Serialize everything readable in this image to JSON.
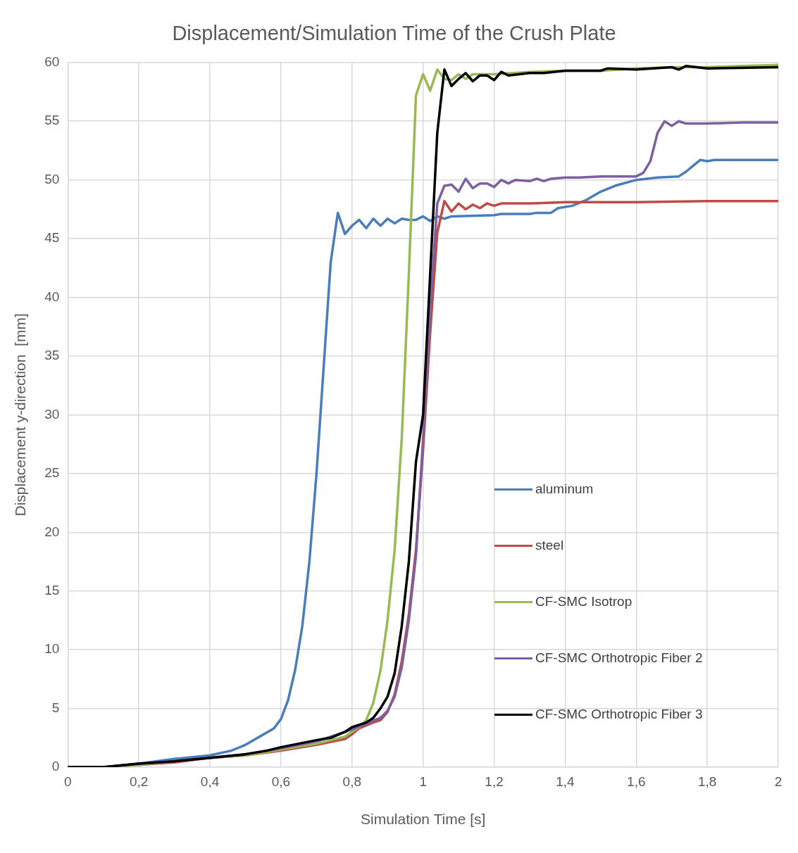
{
  "chart_data": {
    "type": "line",
    "title": "Displacement/Simulation Time of the Crush Plate",
    "xlabel": "Simulation Time [s]",
    "ylabel": "Displacement y-direction  [mm]",
    "xlim": [
      0,
      2
    ],
    "xticks": [
      0,
      {
        "value": 0.2,
        "label": "0,2"
      },
      {
        "value": 0.4,
        "label": "0,4"
      },
      {
        "value": 0.6,
        "label": "0,6"
      },
      {
        "value": 0.8,
        "label": "0,8"
      },
      1,
      {
        "value": 1.2,
        "label": "1,2"
      },
      {
        "value": 1.4,
        "label": "1,4"
      },
      {
        "value": 1.6,
        "label": "1,6"
      },
      {
        "value": 1.8,
        "label": "1,8"
      },
      2
    ],
    "ylim": [
      0,
      60
    ],
    "yticks": [
      0,
      5,
      10,
      15,
      20,
      25,
      30,
      35,
      40,
      45,
      50,
      55,
      60
    ],
    "grid": true,
    "legend": "right",
    "marker": "none",
    "line_style": "solid",
    "series": [
      {
        "name": "aluminum",
        "color": "#4a7ebb",
        "x": [
          0,
          0.1,
          0.2,
          0.3,
          0.4,
          0.46,
          0.5,
          0.54,
          0.58,
          0.6,
          0.62,
          0.64,
          0.66,
          0.68,
          0.7,
          0.72,
          0.74,
          0.76,
          0.78,
          0.8,
          0.82,
          0.84,
          0.86,
          0.88,
          0.9,
          0.92,
          0.94,
          0.96,
          0.98,
          1.0,
          1.02,
          1.04,
          1.06,
          1.08,
          1.2,
          1.22,
          1.3,
          1.32,
          1.36,
          1.38,
          1.42,
          1.46,
          1.5,
          1.54,
          1.6,
          1.66,
          1.72,
          1.74,
          1.76,
          1.78,
          1.8,
          1.82,
          1.88,
          2.0
        ],
        "values": [
          0,
          0,
          0.3,
          0.7,
          1.0,
          1.4,
          1.9,
          2.6,
          3.3,
          4.1,
          5.7,
          8.3,
          12,
          17.5,
          25,
          34,
          43,
          47.2,
          45.4,
          46.1,
          46.6,
          45.9,
          46.7,
          46.1,
          46.7,
          46.3,
          46.7,
          46.6,
          46.6,
          46.9,
          46.5,
          46.9,
          46.7,
          46.9,
          47.0,
          47.1,
          47.1,
          47.2,
          47.2,
          47.6,
          47.8,
          48.3,
          49.0,
          49.5,
          50.0,
          50.2,
          50.3,
          50.7,
          51.2,
          51.7,
          51.6,
          51.7,
          51.7,
          51.7
        ]
      },
      {
        "name": "steel",
        "color": "#be4b48",
        "x": [
          0,
          0.1,
          0.2,
          0.3,
          0.4,
          0.5,
          0.6,
          0.7,
          0.78,
          0.8,
          0.82,
          0.86,
          0.88,
          0.9,
          0.92,
          0.94,
          0.96,
          0.98,
          1.0,
          1.02,
          1.04,
          1.06,
          1.08,
          1.1,
          1.12,
          1.14,
          1.16,
          1.18,
          1.2,
          1.22,
          1.3,
          1.4,
          1.6,
          1.8,
          2.0
        ],
        "values": [
          0,
          0,
          0.2,
          0.4,
          0.8,
          1.0,
          1.4,
          1.9,
          2.4,
          2.8,
          3.3,
          3.8,
          4.0,
          4.7,
          6.2,
          9,
          13,
          18.5,
          27,
          37,
          45.5,
          48.2,
          47.3,
          48.0,
          47.5,
          47.9,
          47.6,
          48.0,
          47.8,
          48.0,
          48.0,
          48.1,
          48.1,
          48.2,
          48.2
        ]
      },
      {
        "name": "CF-SMC Isotrop",
        "color": "#98b954",
        "x": [
          0,
          0.1,
          0.2,
          0.3,
          0.4,
          0.5,
          0.6,
          0.7,
          0.78,
          0.82,
          0.84,
          0.86,
          0.88,
          0.9,
          0.92,
          0.94,
          0.96,
          0.98,
          1.0,
          1.02,
          1.04,
          1.06,
          1.08,
          1.1,
          1.12,
          1.14,
          1.2,
          1.3,
          1.4,
          1.5,
          1.6,
          1.7,
          1.8,
          1.9,
          2.0
        ],
        "values": [
          0,
          0,
          0.2,
          0.5,
          0.8,
          1.0,
          1.5,
          2.0,
          2.6,
          3.4,
          4.0,
          5.5,
          8.2,
          12.5,
          18.5,
          28,
          42,
          57.2,
          59.0,
          57.6,
          59.4,
          58.6,
          58.5,
          59.0,
          58.6,
          59.0,
          59.0,
          59.2,
          59.3,
          59.3,
          59.5,
          59.6,
          59.6,
          59.7,
          59.8
        ]
      },
      {
        "name": "CF-SMC Orthotropic Fiber 2",
        "color": "#7d60a0",
        "x": [
          0,
          0.1,
          0.2,
          0.3,
          0.4,
          0.5,
          0.6,
          0.7,
          0.8,
          0.84,
          0.88,
          0.9,
          0.92,
          0.94,
          0.96,
          0.98,
          1.0,
          1.02,
          1.04,
          1.06,
          1.08,
          1.1,
          1.12,
          1.14,
          1.16,
          1.18,
          1.2,
          1.22,
          1.24,
          1.26,
          1.3,
          1.32,
          1.34,
          1.36,
          1.4,
          1.44,
          1.5,
          1.54,
          1.6,
          1.62,
          1.64,
          1.66,
          1.68,
          1.7,
          1.72,
          1.74,
          1.8,
          1.9,
          2.0
        ],
        "values": [
          0,
          0,
          0.3,
          0.5,
          0.8,
          1.1,
          1.6,
          2.2,
          3.2,
          3.7,
          4.2,
          4.8,
          6.0,
          8.5,
          12.5,
          18,
          28,
          39,
          48,
          49.5,
          49.6,
          49.0,
          50.1,
          49.3,
          49.7,
          49.7,
          49.4,
          50.0,
          49.7,
          50.0,
          49.9,
          50.1,
          49.9,
          50.1,
          50.2,
          50.2,
          50.3,
          50.3,
          50.3,
          50.6,
          51.6,
          54.0,
          55.0,
          54.6,
          55.0,
          54.8,
          54.8,
          54.9,
          54.9
        ]
      },
      {
        "name": "CF-SMC Orthotropic Fiber 3",
        "color": "#000000",
        "x": [
          0,
          0.1,
          0.2,
          0.3,
          0.4,
          0.5,
          0.56,
          0.6,
          0.7,
          0.74,
          0.78,
          0.8,
          0.84,
          0.86,
          0.88,
          0.9,
          0.92,
          0.94,
          0.96,
          0.98,
          1.0,
          1.02,
          1.04,
          1.06,
          1.08,
          1.1,
          1.12,
          1.14,
          1.16,
          1.18,
          1.2,
          1.22,
          1.24,
          1.3,
          1.34,
          1.4,
          1.5,
          1.52,
          1.6,
          1.7,
          1.72,
          1.74,
          1.8,
          2.0
        ],
        "values": [
          0,
          0,
          0.3,
          0.5,
          0.8,
          1.1,
          1.4,
          1.7,
          2.3,
          2.5,
          3.0,
          3.4,
          3.8,
          4.2,
          5.0,
          6.0,
          8,
          12,
          17.5,
          26,
          30,
          42,
          54,
          59.4,
          58.0,
          58.6,
          59.1,
          58.4,
          58.9,
          58.9,
          58.5,
          59.2,
          58.9,
          59.1,
          59.1,
          59.3,
          59.3,
          59.5,
          59.4,
          59.6,
          59.4,
          59.7,
          59.5,
          59.6
        ]
      }
    ]
  }
}
